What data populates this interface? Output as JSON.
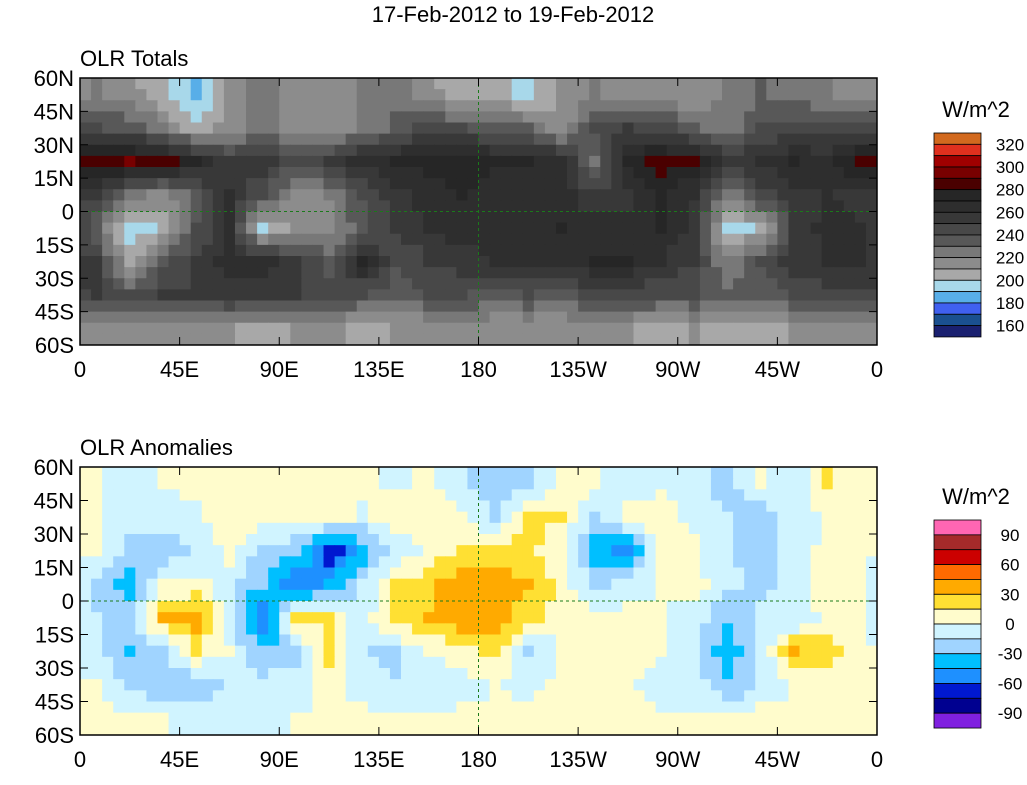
{
  "title": "17-Feb-2012 to 19-Feb-2012",
  "chart_data": [
    {
      "type": "heatmap",
      "title": "OLR Totals",
      "units": "W/m^2",
      "x_ticks": [
        "0",
        "45E",
        "90E",
        "135E",
        "180",
        "135W",
        "90W",
        "45W",
        "0"
      ],
      "y_ticks": [
        "60N",
        "45N",
        "30N",
        "15N",
        "0",
        "15S",
        "30S",
        "45S",
        "60S"
      ],
      "lon_step": 15,
      "lat_rows": [
        "60N-45N",
        "45N-30N",
        "30N-15N",
        "15N-0",
        "0-15S",
        "15S-30S",
        "30S-45S",
        "45S-60S"
      ],
      "legend_labels": [
        "320",
        "300",
        "280",
        "260",
        "240",
        "220",
        "200",
        "180",
        "160"
      ],
      "levels_min": 160,
      "levels_step": 10,
      "colors": [
        "#1a2070",
        "#1a5090",
        "#4060f0",
        "#58aee8",
        "#a8d8ea",
        "#a8a8a8",
        "#8c8c8c",
        "#787878",
        "#585858",
        "#484848",
        "#383838",
        "#2e2e2e",
        "#262626",
        "#4a0000",
        "#780000",
        "#a00000",
        "#e0301e",
        "#d2691e"
      ],
      "values": [
        [
          220,
          215,
          200,
          185,
          210,
          225,
          215,
          210,
          220,
          225,
          215,
          200,
          205,
          195,
          210,
          220,
          215,
          210,
          210,
          220,
          230,
          225,
          220,
          215
        ],
        [
          240,
          235,
          225,
          200,
          215,
          225,
          210,
          215,
          220,
          235,
          245,
          240,
          235,
          230,
          210,
          240,
          250,
          245,
          230,
          225,
          240,
          245,
          245,
          240
        ],
        [
          285,
          290,
          285,
          270,
          250,
          255,
          240,
          250,
          265,
          270,
          275,
          275,
          270,
          270,
          265,
          225,
          275,
          285,
          280,
          255,
          260,
          270,
          265,
          285
        ],
        [
          250,
          225,
          215,
          235,
          260,
          240,
          215,
          220,
          240,
          255,
          265,
          270,
          265,
          265,
          265,
          250,
          255,
          270,
          260,
          220,
          245,
          255,
          260,
          255
        ],
        [
          230,
          190,
          200,
          240,
          260,
          195,
          215,
          215,
          235,
          250,
          260,
          265,
          265,
          265,
          270,
          265,
          265,
          270,
          255,
          195,
          200,
          250,
          265,
          260
        ],
        [
          250,
          205,
          235,
          250,
          265,
          265,
          250,
          235,
          270,
          240,
          250,
          255,
          260,
          265,
          265,
          270,
          270,
          260,
          250,
          220,
          240,
          255,
          260,
          260
        ],
        [
          250,
          240,
          250,
          250,
          255,
          255,
          250,
          245,
          240,
          235,
          240,
          240,
          235,
          240,
          235,
          245,
          245,
          240,
          240,
          230,
          235,
          240,
          245,
          245
        ],
        [
          215,
          210,
          210,
          215,
          210,
          205,
          210,
          215,
          205,
          210,
          210,
          215,
          210,
          210,
          210,
          215,
          210,
          205,
          210,
          205,
          205,
          210,
          210,
          210
        ]
      ]
    },
    {
      "type": "heatmap",
      "title": "OLR Anomalies",
      "units": "W/m^2",
      "x_ticks": [
        "0",
        "45E",
        "90E",
        "135E",
        "180",
        "135W",
        "90W",
        "45W",
        "0"
      ],
      "y_ticks": [
        "60N",
        "45N",
        "30N",
        "15N",
        "0",
        "15S",
        "30S",
        "45S",
        "60S"
      ],
      "lon_step": 15,
      "lat_rows": [
        "60N-45N",
        "45N-30N",
        "30N-15N",
        "15N-0",
        "0-15S",
        "15S-30S",
        "30S-45S",
        "45S-60S"
      ],
      "legend_labels": [
        "90",
        "60",
        "30",
        "0",
        "-30",
        "-60",
        "-90"
      ],
      "levels_min": -90,
      "levels_step": 15,
      "colors": [
        "#8020e0",
        "#000090",
        "#0018d0",
        "#1e90ff",
        "#00bfff",
        "#a0d4ff",
        "#d0f4ff",
        "#fffccc",
        "#ffe033",
        "#ffaa00",
        "#ff6a00",
        "#cc0000",
        "#a52a2a",
        "#ff66b3"
      ],
      "values": [
        [
          5,
          -15,
          0,
          5,
          0,
          5,
          0,
          0,
          5,
          -5,
          5,
          -15,
          -20,
          -25,
          5,
          5,
          -10,
          -5,
          -10,
          -20,
          0,
          -15,
          15,
          10
        ],
        [
          0,
          -10,
          -10,
          -5,
          10,
          5,
          0,
          10,
          -5,
          10,
          5,
          5,
          -20,
          20,
          15,
          -20,
          5,
          10,
          -5,
          -15,
          -25,
          -5,
          0,
          5
        ],
        [
          0,
          -20,
          -25,
          -15,
          5,
          -20,
          -25,
          -70,
          -40,
          -10,
          5,
          15,
          20,
          20,
          5,
          -40,
          -50,
          10,
          5,
          -15,
          -20,
          -10,
          5,
          0
        ],
        [
          -20,
          -40,
          0,
          5,
          -10,
          -30,
          -60,
          -45,
          -15,
          15,
          25,
          40,
          40,
          30,
          10,
          -20,
          -10,
          0,
          5,
          -10,
          -20,
          -5,
          10,
          0
        ],
        [
          -15,
          -20,
          30,
          40,
          -10,
          -60,
          20,
          15,
          -10,
          25,
          30,
          40,
          40,
          20,
          10,
          5,
          5,
          0,
          -5,
          -30,
          -10,
          -15,
          5,
          0
        ],
        [
          -10,
          -35,
          -20,
          15,
          0,
          -30,
          -25,
          25,
          -15,
          -20,
          0,
          10,
          20,
          -20,
          0,
          5,
          5,
          0,
          -15,
          -40,
          -10,
          30,
          20,
          5
        ],
        [
          0,
          -20,
          -30,
          -25,
          -15,
          -10,
          -5,
          5,
          -10,
          -15,
          -15,
          -10,
          0,
          -5,
          5,
          0,
          0,
          -5,
          -5,
          -30,
          -10,
          0,
          5,
          0
        ],
        [
          5,
          5,
          0,
          -5,
          -10,
          -5,
          0,
          0,
          5,
          0,
          0,
          5,
          5,
          5,
          0,
          0,
          5,
          0,
          0,
          0,
          5,
          0,
          0,
          5
        ]
      ]
    }
  ]
}
